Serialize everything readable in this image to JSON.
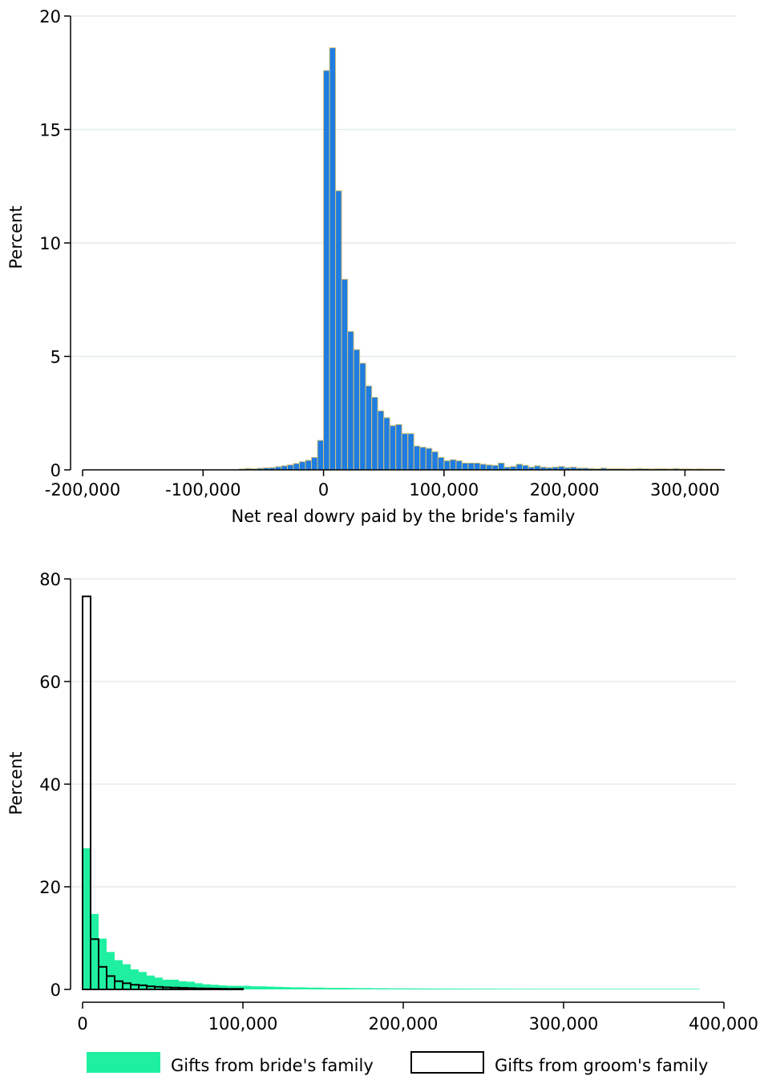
{
  "chart_data": [
    {
      "type": "bar",
      "subtype": "histogram",
      "xlabel": "Net real dowry paid by the bride's family",
      "ylabel": "Percent",
      "xlim": [
        -200000,
        335000
      ],
      "ylim": [
        0,
        20
      ],
      "bin_width": 5000,
      "x_ticks": [
        -200000,
        -100000,
        0,
        100000,
        200000,
        300000
      ],
      "x_tick_labels": [
        "-200,000",
        "-100,000",
        "0",
        "100,000",
        "200,000",
        "300,000"
      ],
      "y_ticks": [
        0,
        5,
        10,
        15,
        20
      ],
      "y_tick_labels": [
        "0",
        "5",
        "10",
        "15",
        "20"
      ],
      "grid": true,
      "colors": {
        "fill": "#1f7ce0",
        "edge": "#d4c27a",
        "grid": "#e3ebef"
      },
      "bin_starts": [
        -70000,
        -65000,
        -60000,
        -55000,
        -50000,
        -45000,
        -40000,
        -35000,
        -30000,
        -25000,
        -20000,
        -15000,
        -10000,
        -5000,
        0,
        5000,
        10000,
        15000,
        20000,
        25000,
        30000,
        35000,
        40000,
        45000,
        50000,
        55000,
        60000,
        65000,
        70000,
        75000,
        80000,
        85000,
        90000,
        95000,
        100000,
        105000,
        110000,
        115000,
        120000,
        125000,
        130000,
        135000,
        140000,
        145000,
        150000,
        155000,
        160000,
        165000,
        170000,
        175000,
        180000,
        185000,
        190000,
        195000,
        200000,
        205000,
        210000,
        215000,
        220000,
        225000,
        230000,
        235000,
        240000,
        245000,
        250000,
        255000,
        260000,
        265000,
        270000,
        275000,
        280000,
        285000,
        290000,
        295000,
        300000,
        305000,
        310000,
        315000,
        320000,
        325000
      ],
      "values": [
        0.04,
        0.06,
        0.05,
        0.07,
        0.09,
        0.1,
        0.14,
        0.18,
        0.22,
        0.28,
        0.36,
        0.42,
        0.55,
        1.3,
        17.6,
        18.6,
        12.3,
        8.4,
        6.1,
        5.3,
        4.7,
        3.7,
        3.2,
        2.6,
        2.3,
        1.95,
        2.0,
        1.6,
        1.6,
        1.05,
        1.0,
        0.95,
        0.8,
        0.55,
        0.4,
        0.45,
        0.4,
        0.3,
        0.3,
        0.3,
        0.25,
        0.22,
        0.2,
        0.3,
        0.12,
        0.15,
        0.25,
        0.2,
        0.12,
        0.18,
        0.12,
        0.1,
        0.12,
        0.15,
        0.1,
        0.12,
        0.08,
        0.08,
        0.06,
        0.05,
        0.08,
        0.05,
        0.05,
        0.05,
        0.04,
        0.05,
        0.06,
        0.05,
        0.04,
        0.05,
        0.05,
        0.04,
        0.06,
        0.04,
        0.04,
        0.03,
        0.04,
        0.03,
        0.03,
        0.03
      ]
    },
    {
      "type": "bar",
      "subtype": "histogram",
      "xlabel": "",
      "ylabel": "Percent",
      "xlim": [
        0,
        400000
      ],
      "ylim": [
        0,
        80
      ],
      "bin_width": 5000,
      "x_ticks": [
        0,
        100000,
        200000,
        300000,
        400000
      ],
      "x_tick_labels": [
        "0",
        "100,000",
        "200,000",
        "300,000",
        "400,000"
      ],
      "y_ticks": [
        0,
        20,
        40,
        60,
        80
      ],
      "y_tick_labels": [
        "0",
        "20",
        "40",
        "60",
        "80"
      ],
      "grid": true,
      "legend": {
        "position": "bottom"
      },
      "colors": {
        "grid": "#e3ebef"
      },
      "series": [
        {
          "name": "Gifts from bride's family",
          "style": "filled",
          "color": "#1ff0a0",
          "values": [
            27.5,
            14.7,
            9.9,
            7.3,
            5.7,
            4.9,
            3.9,
            3.4,
            2.7,
            2.3,
            1.9,
            1.9,
            1.6,
            1.5,
            1.2,
            1.0,
            0.9,
            0.8,
            0.7,
            0.7,
            0.7,
            0.6,
            0.6,
            0.55,
            0.5,
            0.45,
            0.4,
            0.4,
            0.35,
            0.35,
            0.3,
            0.3,
            0.3,
            0.28,
            0.25,
            0.25,
            0.22,
            0.22,
            0.2,
            0.2,
            0.2,
            0.18,
            0.18,
            0.16,
            0.16,
            0.15,
            0.15,
            0.14,
            0.14,
            0.13,
            0.13,
            0.12,
            0.12,
            0.12,
            0.11,
            0.11,
            0.1,
            0.1,
            0.1,
            0.1,
            0.1,
            0.1,
            0.1,
            0.1,
            0.1,
            0.1,
            0.1,
            0.1,
            0.1,
            0.1,
            0.1,
            0.1,
            0.1,
            0.1,
            0.1,
            0.1,
            0.1
          ]
        },
        {
          "name": "Gifts from groom's family",
          "style": "outline",
          "color": "#000000",
          "values": [
            76.6,
            9.8,
            4.4,
            2.6,
            1.6,
            1.2,
            0.9,
            0.8,
            0.6,
            0.5,
            0.4,
            0.35,
            0.3,
            0.25,
            0.2,
            0.18,
            0.15,
            0.12,
            0.1,
            0.1
          ]
        }
      ]
    }
  ]
}
